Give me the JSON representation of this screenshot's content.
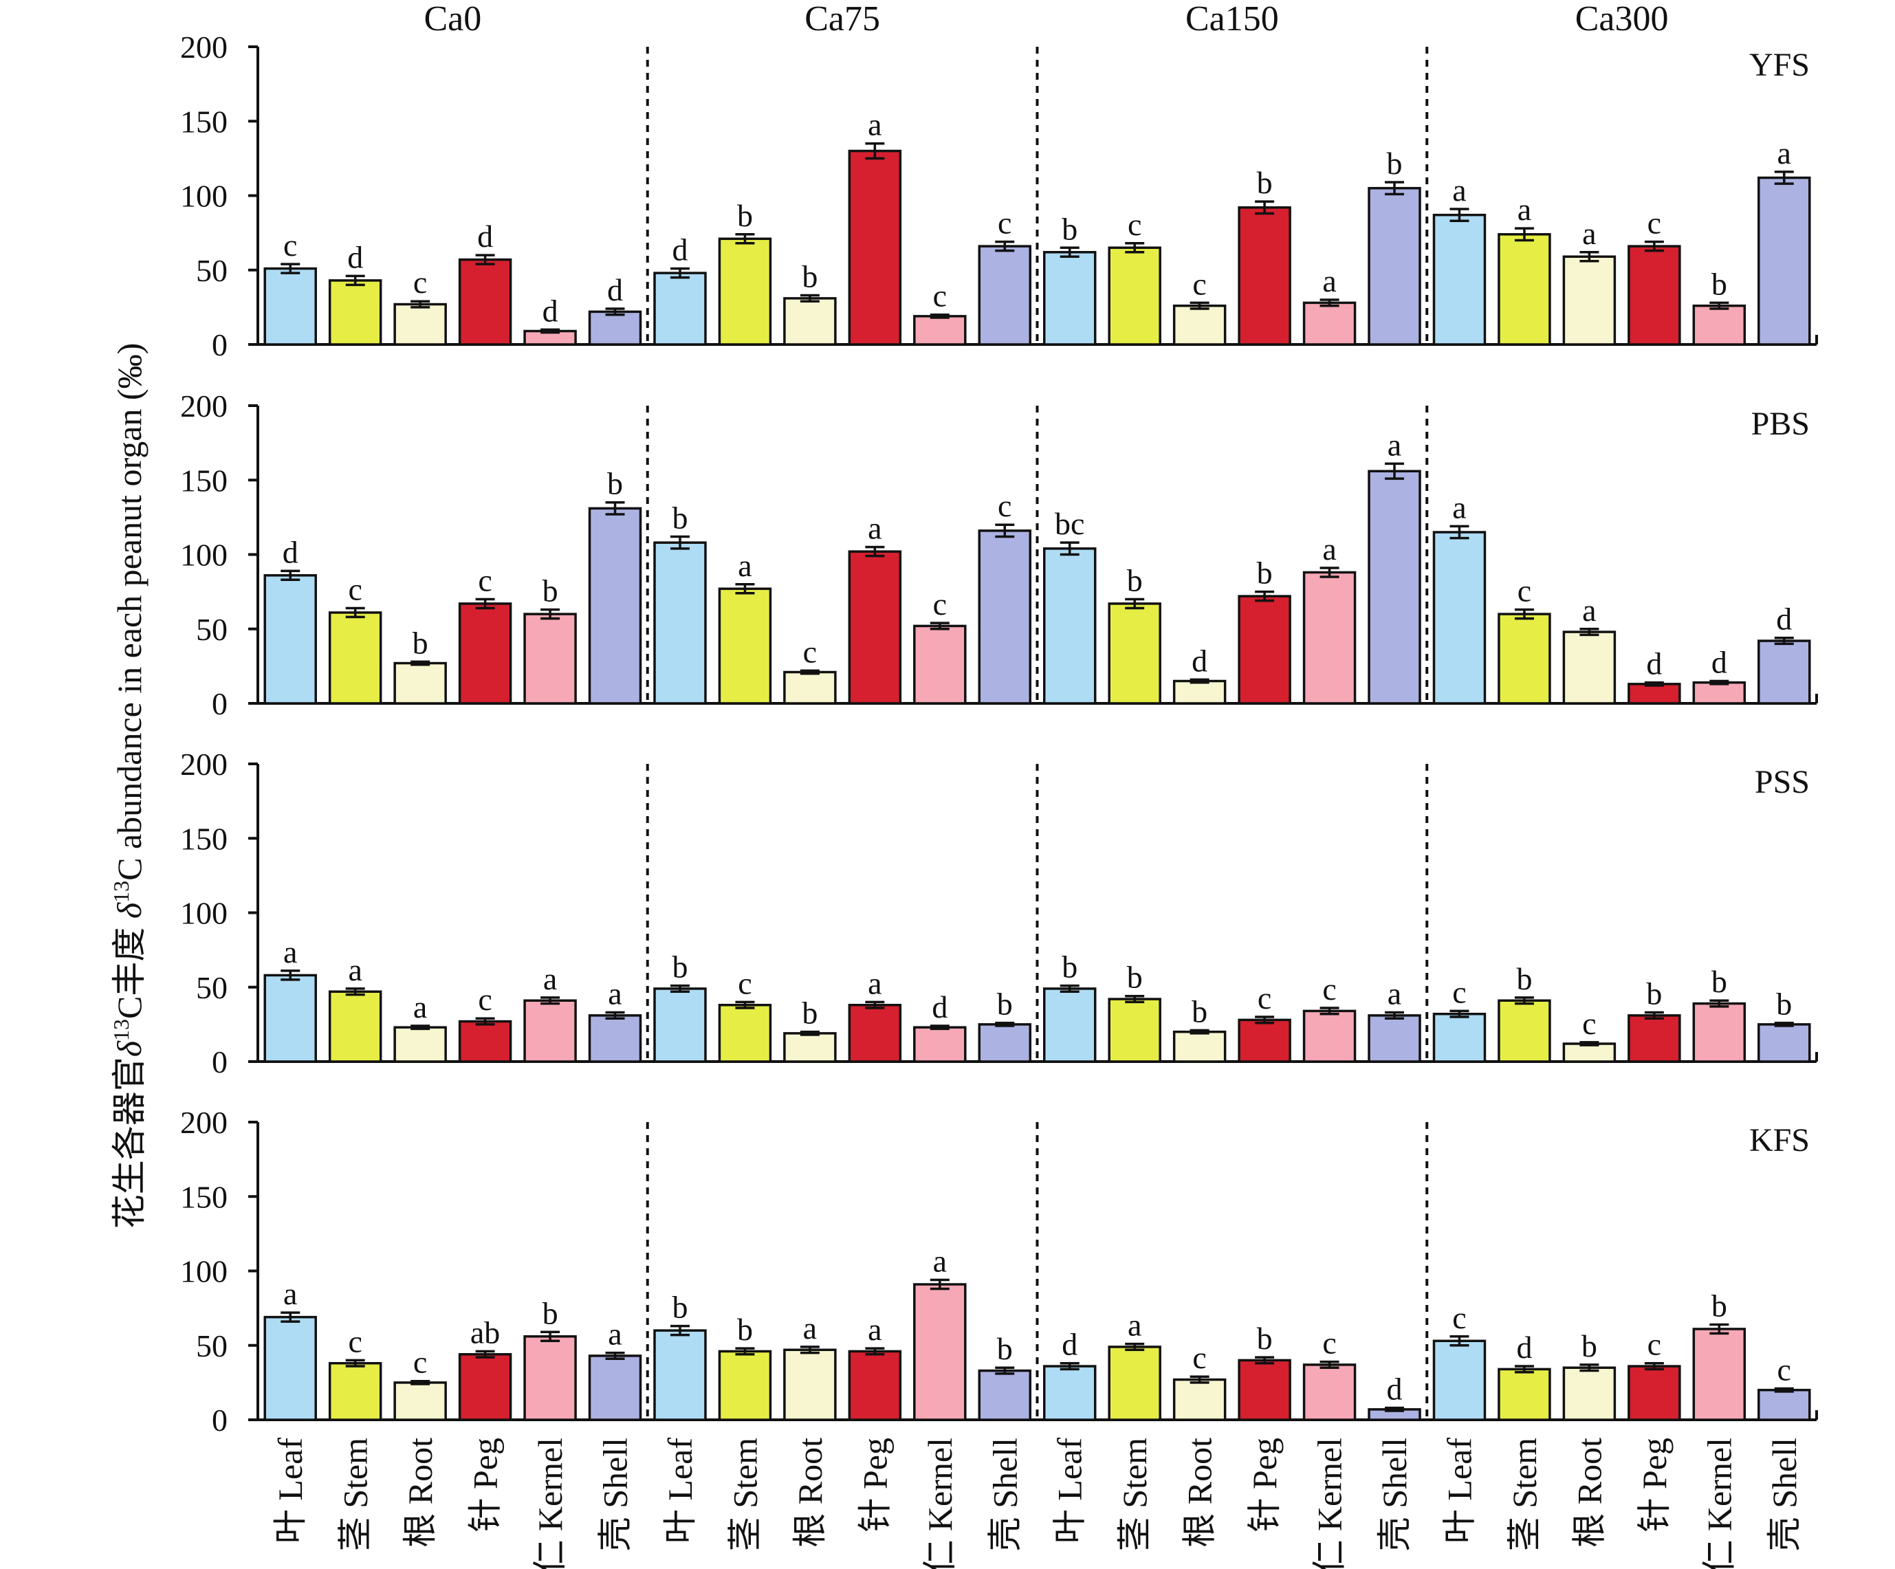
{
  "ylabel_cn": "花生各器官",
  "ylabel_delta": "δ",
  "ylabel_sup": "13",
  "ylabel_rest_cn": "C丰度 ",
  "ylabel_en_delta": "δ",
  "ylabel_en_sup": "13",
  "ylabel_en_rest": "C abundance in each peanut organ (‰)",
  "chart_data": {
    "type": "bar",
    "treatments": [
      "Ca0",
      "Ca75",
      "Ca150",
      "Ca300"
    ],
    "categories": [
      "叶 Leaf",
      "茎 Stem",
      "根 Root",
      "针 Peg",
      "仁 Kernel",
      "壳 Shell"
    ],
    "category_colors": [
      "#aedcf4",
      "#e6ee46",
      "#f8f6d0",
      "#d6202f",
      "#f7a8b6",
      "#acb2e2"
    ],
    "ylim": [
      0,
      200
    ],
    "yticks": [
      0,
      50,
      100,
      150,
      200
    ],
    "panels": [
      {
        "label": "YFS",
        "values": [
          [
            51,
            43,
            27,
            57,
            9,
            22
          ],
          [
            48,
            71,
            31,
            130,
            19,
            66
          ],
          [
            62,
            65,
            26,
            92,
            28,
            105
          ],
          [
            87,
            74,
            59,
            66,
            26,
            112
          ]
        ],
        "errors": [
          [
            3,
            3,
            2,
            3,
            1,
            2
          ],
          [
            3,
            3,
            2,
            5,
            1,
            3
          ],
          [
            3,
            3,
            2,
            4,
            2,
            4
          ],
          [
            4,
            4,
            3,
            3,
            2,
            4
          ]
        ],
        "letters": [
          [
            "c",
            "d",
            "c",
            "d",
            "d",
            "d"
          ],
          [
            "d",
            "b",
            "b",
            "a",
            "c",
            "c"
          ],
          [
            "b",
            "c",
            "c",
            "b",
            "a",
            "b"
          ],
          [
            "a",
            "a",
            "a",
            "c",
            "b",
            "a"
          ]
        ]
      },
      {
        "label": "PBS",
        "values": [
          [
            86,
            61,
            27,
            67,
            60,
            131
          ],
          [
            108,
            77,
            21,
            102,
            52,
            116
          ],
          [
            104,
            67,
            15,
            72,
            88,
            156
          ],
          [
            115,
            60,
            48,
            13,
            14,
            42
          ]
        ],
        "errors": [
          [
            3,
            3,
            1,
            3,
            3,
            4
          ],
          [
            4,
            3,
            1,
            3,
            2,
            4
          ],
          [
            4,
            3,
            1,
            3,
            3,
            5
          ],
          [
            4,
            3,
            2,
            1,
            1,
            2
          ]
        ],
        "letters": [
          [
            "d",
            "c",
            "b",
            "c",
            "b",
            "b"
          ],
          [
            "b",
            "a",
            "c",
            "a",
            "c",
            "c"
          ],
          [
            "bc",
            "b",
            "d",
            "b",
            "a",
            "a"
          ],
          [
            "a",
            "c",
            "a",
            "d",
            "d",
            "d"
          ]
        ]
      },
      {
        "label": "PSS",
        "values": [
          [
            58,
            47,
            23,
            27,
            41,
            31
          ],
          [
            49,
            38,
            19,
            38,
            23,
            25
          ],
          [
            49,
            42,
            20,
            28,
            34,
            31
          ],
          [
            32,
            41,
            12,
            31,
            39,
            25
          ]
        ],
        "errors": [
          [
            3,
            2,
            1,
            2,
            2,
            2
          ],
          [
            2,
            2,
            1,
            2,
            1,
            1
          ],
          [
            2,
            2,
            1,
            2,
            2,
            2
          ],
          [
            2,
            2,
            1,
            2,
            2,
            1
          ]
        ],
        "letters": [
          [
            "a",
            "a",
            "a",
            "c",
            "a",
            "a"
          ],
          [
            "b",
            "c",
            "b",
            "a",
            "d",
            "b"
          ],
          [
            "b",
            "b",
            "b",
            "c",
            "c",
            "a"
          ],
          [
            "c",
            "b",
            "c",
            "b",
            "b",
            "b"
          ]
        ]
      },
      {
        "label": "KFS",
        "values": [
          [
            69,
            38,
            25,
            44,
            56,
            43
          ],
          [
            60,
            46,
            47,
            46,
            91,
            33
          ],
          [
            36,
            49,
            27,
            40,
            37,
            7
          ],
          [
            53,
            34,
            35,
            36,
            61,
            20
          ]
        ],
        "errors": [
          [
            3,
            2,
            1,
            2,
            3,
            2
          ],
          [
            3,
            2,
            2,
            2,
            3,
            2
          ],
          [
            2,
            2,
            2,
            2,
            2,
            1
          ],
          [
            3,
            2,
            2,
            2,
            3,
            1
          ]
        ],
        "letters": [
          [
            "a",
            "c",
            "c",
            "ab",
            "b",
            "a"
          ],
          [
            "b",
            "b",
            "a",
            "a",
            "a",
            "b"
          ],
          [
            "d",
            "a",
            "c",
            "b",
            "c",
            "d"
          ],
          [
            "c",
            "d",
            "b",
            "c",
            "b",
            "c"
          ]
        ]
      }
    ]
  }
}
